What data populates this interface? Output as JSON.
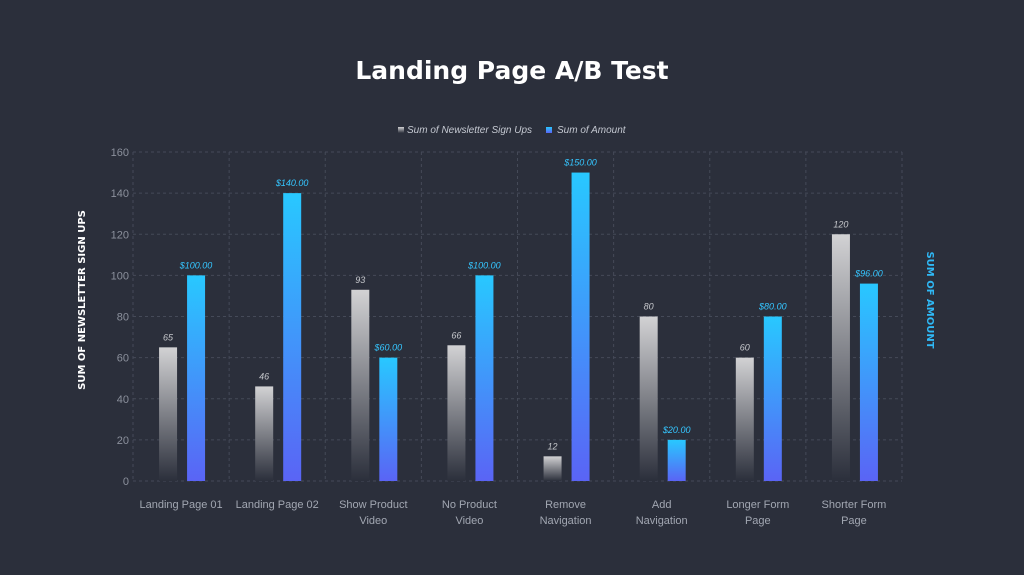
{
  "chart_data": {
    "type": "bar",
    "title": "Landing Page A/B Test",
    "categories": [
      [
        "Landing Page 01"
      ],
      [
        "Landing Page 02"
      ],
      [
        "Show Product",
        "Video"
      ],
      [
        "No Product",
        "Video"
      ],
      [
        "Remove",
        "Navigation"
      ],
      [
        "Add",
        "Navigation"
      ],
      [
        "Longer Form",
        "Page"
      ],
      [
        "Shorter Form",
        "Page"
      ]
    ],
    "series": [
      {
        "name": "Sum of Newsletter Sign Ups",
        "values": [
          65,
          46,
          93,
          66,
          12,
          80,
          60,
          120
        ],
        "labels": [
          "65",
          "46",
          "93",
          "66",
          "12",
          "80",
          "60",
          "120"
        ],
        "color_top": "#d2d2d4",
        "color_bottom": "#2b2f3b"
      },
      {
        "name": "Sum of Amount",
        "values": [
          100,
          140,
          60,
          100,
          150,
          20,
          80,
          96
        ],
        "labels": [
          "$100.00",
          "$140.00",
          "$60.00",
          "$100.00",
          "$150.00",
          "$20.00",
          "$80.00",
          "$96.00"
        ],
        "color_top": "#28c8ff",
        "color_bottom": "#5a64f5"
      }
    ],
    "ylabel": "SUM OF NEWSLETTER SIGN UPS",
    "ylabel_right": "SUM OF AMOUNT",
    "ylim": [
      0,
      160
    ],
    "yticks": [
      0,
      20,
      40,
      60,
      80,
      100,
      120,
      140,
      160
    ],
    "grid": true,
    "legend_position": "top-center"
  }
}
